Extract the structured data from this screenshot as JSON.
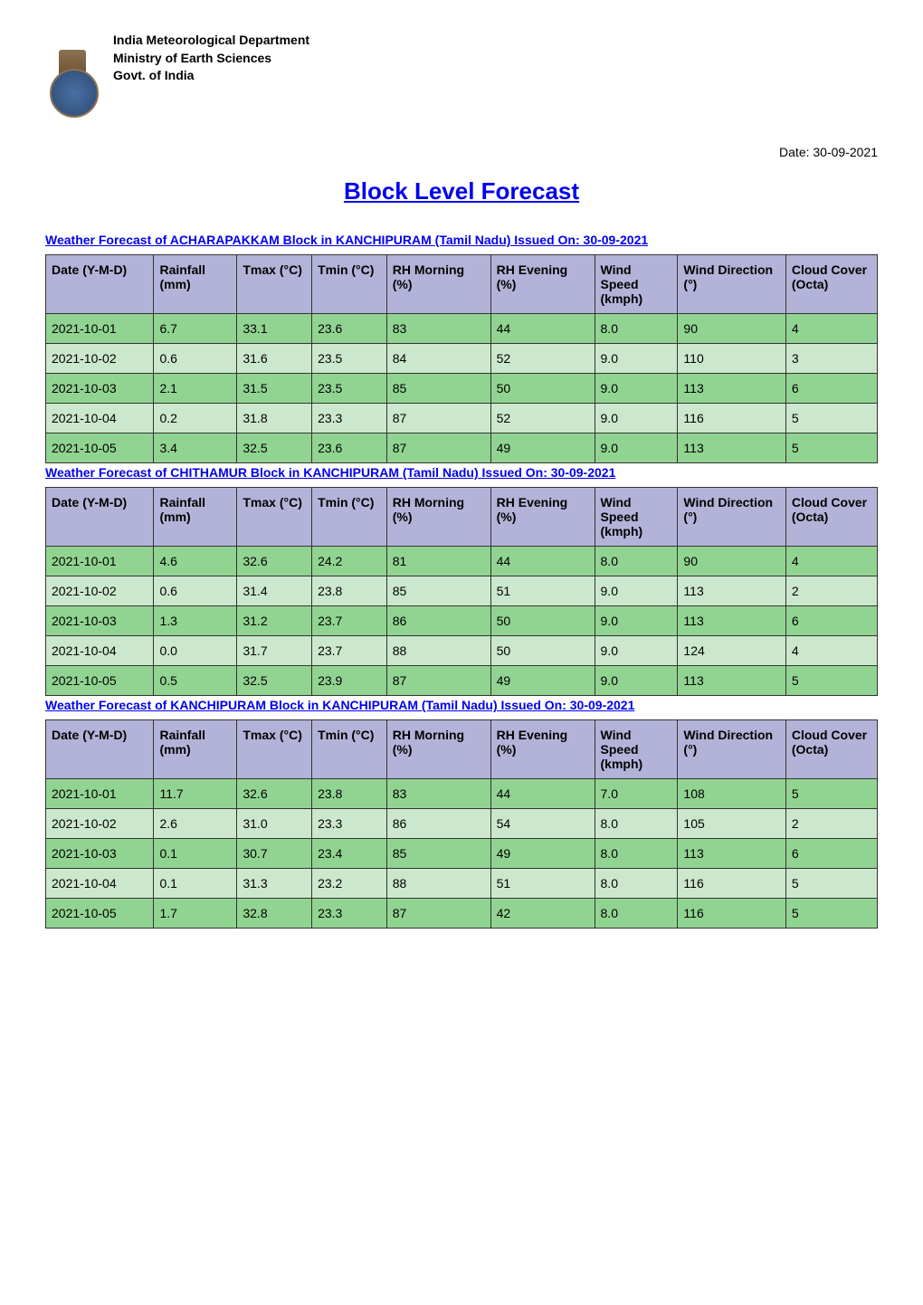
{
  "header": {
    "dept": "India Meteorological Department",
    "ministry": "Ministry of Earth Sciences",
    "govt": "Govt. of India"
  },
  "date_label": "Date: 30-09-2021",
  "main_title": "Block Level Forecast",
  "columns": [
    "Date (Y-M-D)",
    "Rainfall (mm)",
    "Tmax (°C)",
    "Tmin (°C)",
    "RH Morning (%)",
    "RH Evening (%)",
    "Wind Speed (kmph)",
    "Wind Direction (°)",
    "Cloud Cover (Octa)"
  ],
  "col_widths": [
    "13%",
    "10%",
    "9%",
    "9%",
    "12.5%",
    "12.5%",
    "10%",
    "13%",
    "11%"
  ],
  "sections": [
    {
      "title": "Weather Forecast of ACHARAPAKKAM Block in KANCHIPURAM (Tamil Nadu) Issued On: 30-09-2021",
      "rows": [
        [
          "2021-10-01",
          "6.7",
          "33.1",
          "23.6",
          "83",
          "44",
          "8.0",
          "90",
          "4"
        ],
        [
          "2021-10-02",
          "0.6",
          "31.6",
          "23.5",
          "84",
          "52",
          "9.0",
          "110",
          "3"
        ],
        [
          "2021-10-03",
          "2.1",
          "31.5",
          "23.5",
          "85",
          "50",
          "9.0",
          "113",
          "6"
        ],
        [
          "2021-10-04",
          "0.2",
          "31.8",
          "23.3",
          "87",
          "52",
          "9.0",
          "116",
          "5"
        ],
        [
          "2021-10-05",
          "3.4",
          "32.5",
          "23.6",
          "87",
          "49",
          "9.0",
          "113",
          "5"
        ]
      ]
    },
    {
      "title": "Weather Forecast of CHITHAMUR Block in KANCHIPURAM (Tamil Nadu) Issued On: 30-09-2021",
      "rows": [
        [
          "2021-10-01",
          "4.6",
          "32.6",
          "24.2",
          "81",
          "44",
          "8.0",
          "90",
          "4"
        ],
        [
          "2021-10-02",
          "0.6",
          "31.4",
          "23.8",
          "85",
          "51",
          "9.0",
          "113",
          "2"
        ],
        [
          "2021-10-03",
          "1.3",
          "31.2",
          "23.7",
          "86",
          "50",
          "9.0",
          "113",
          "6"
        ],
        [
          "2021-10-04",
          "0.0",
          "31.7",
          "23.7",
          "88",
          "50",
          "9.0",
          "124",
          "4"
        ],
        [
          "2021-10-05",
          "0.5",
          "32.5",
          "23.9",
          "87",
          "49",
          "9.0",
          "113",
          "5"
        ]
      ]
    },
    {
      "title": "Weather Forecast of KANCHIPURAM Block in KANCHIPURAM (Tamil Nadu) Issued On: 30-09-2021",
      "rows": [
        [
          "2021-10-01",
          "11.7",
          "32.6",
          "23.8",
          "83",
          "44",
          "7.0",
          "108",
          "5"
        ],
        [
          "2021-10-02",
          "2.6",
          "31.0",
          "23.3",
          "86",
          "54",
          "8.0",
          "105",
          "2"
        ],
        [
          "2021-10-03",
          "0.1",
          "30.7",
          "23.4",
          "85",
          "49",
          "8.0",
          "113",
          "6"
        ],
        [
          "2021-10-04",
          "0.1",
          "31.3",
          "23.2",
          "88",
          "51",
          "8.0",
          "116",
          "5"
        ],
        [
          "2021-10-05",
          "1.7",
          "32.8",
          "23.3",
          "87",
          "42",
          "8.0",
          "116",
          "5"
        ]
      ]
    }
  ],
  "styling": {
    "header_bg": "#b3b3d9",
    "row_odd_bg": "#91d491",
    "row_even_bg": "#cce8cc",
    "border_color": "#333333",
    "link_color": "#0000EE",
    "body_bg": "#ffffff",
    "font_family": "Arial, Helvetica, sans-serif",
    "title_fontsize": 26,
    "section_title_fontsize": 14,
    "cell_fontsize": 14
  }
}
